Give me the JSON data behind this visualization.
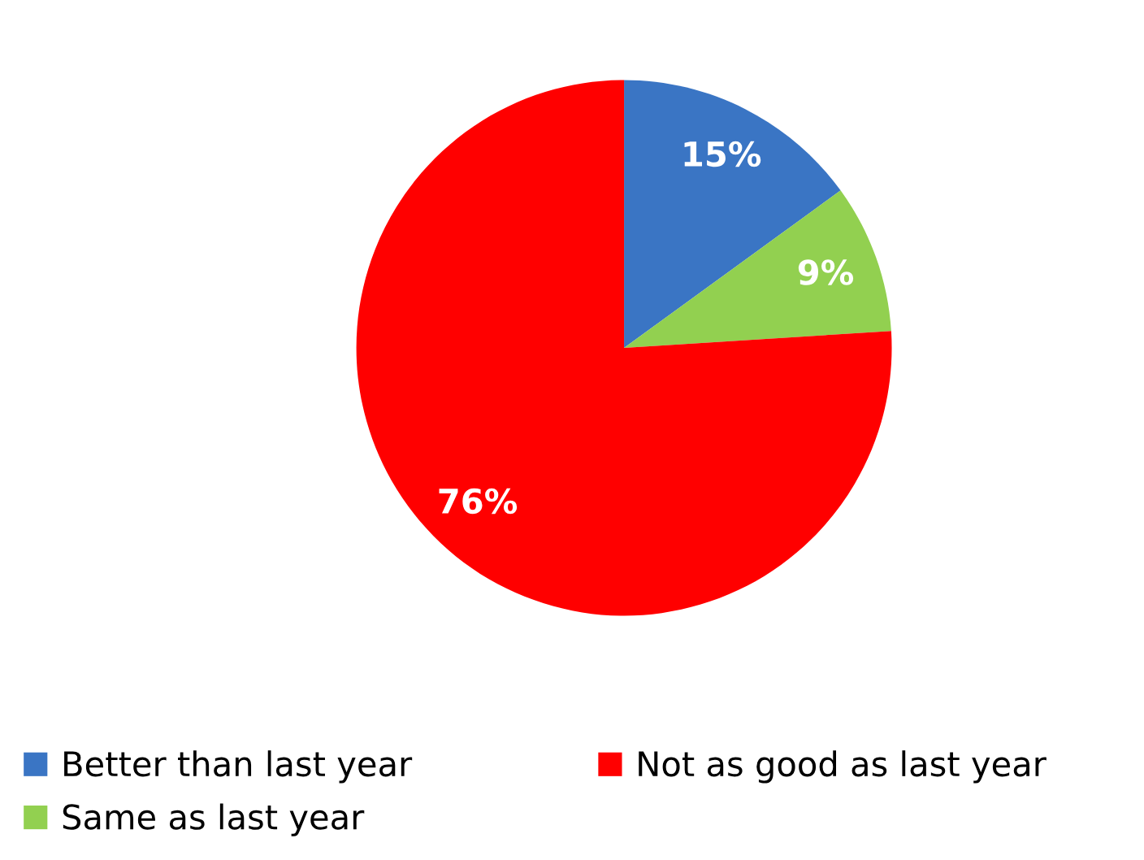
{
  "chart_data": {
    "type": "pie",
    "categories": [
      "Better than last year",
      "Same as last year",
      "Not as good as last year"
    ],
    "values": [
      15,
      9,
      76
    ],
    "colors": [
      "#3a75c4",
      "#92d050",
      "#ff0000"
    ],
    "value_labels": [
      "15%",
      "9%",
      "76%"
    ],
    "legend": "bottom"
  }
}
